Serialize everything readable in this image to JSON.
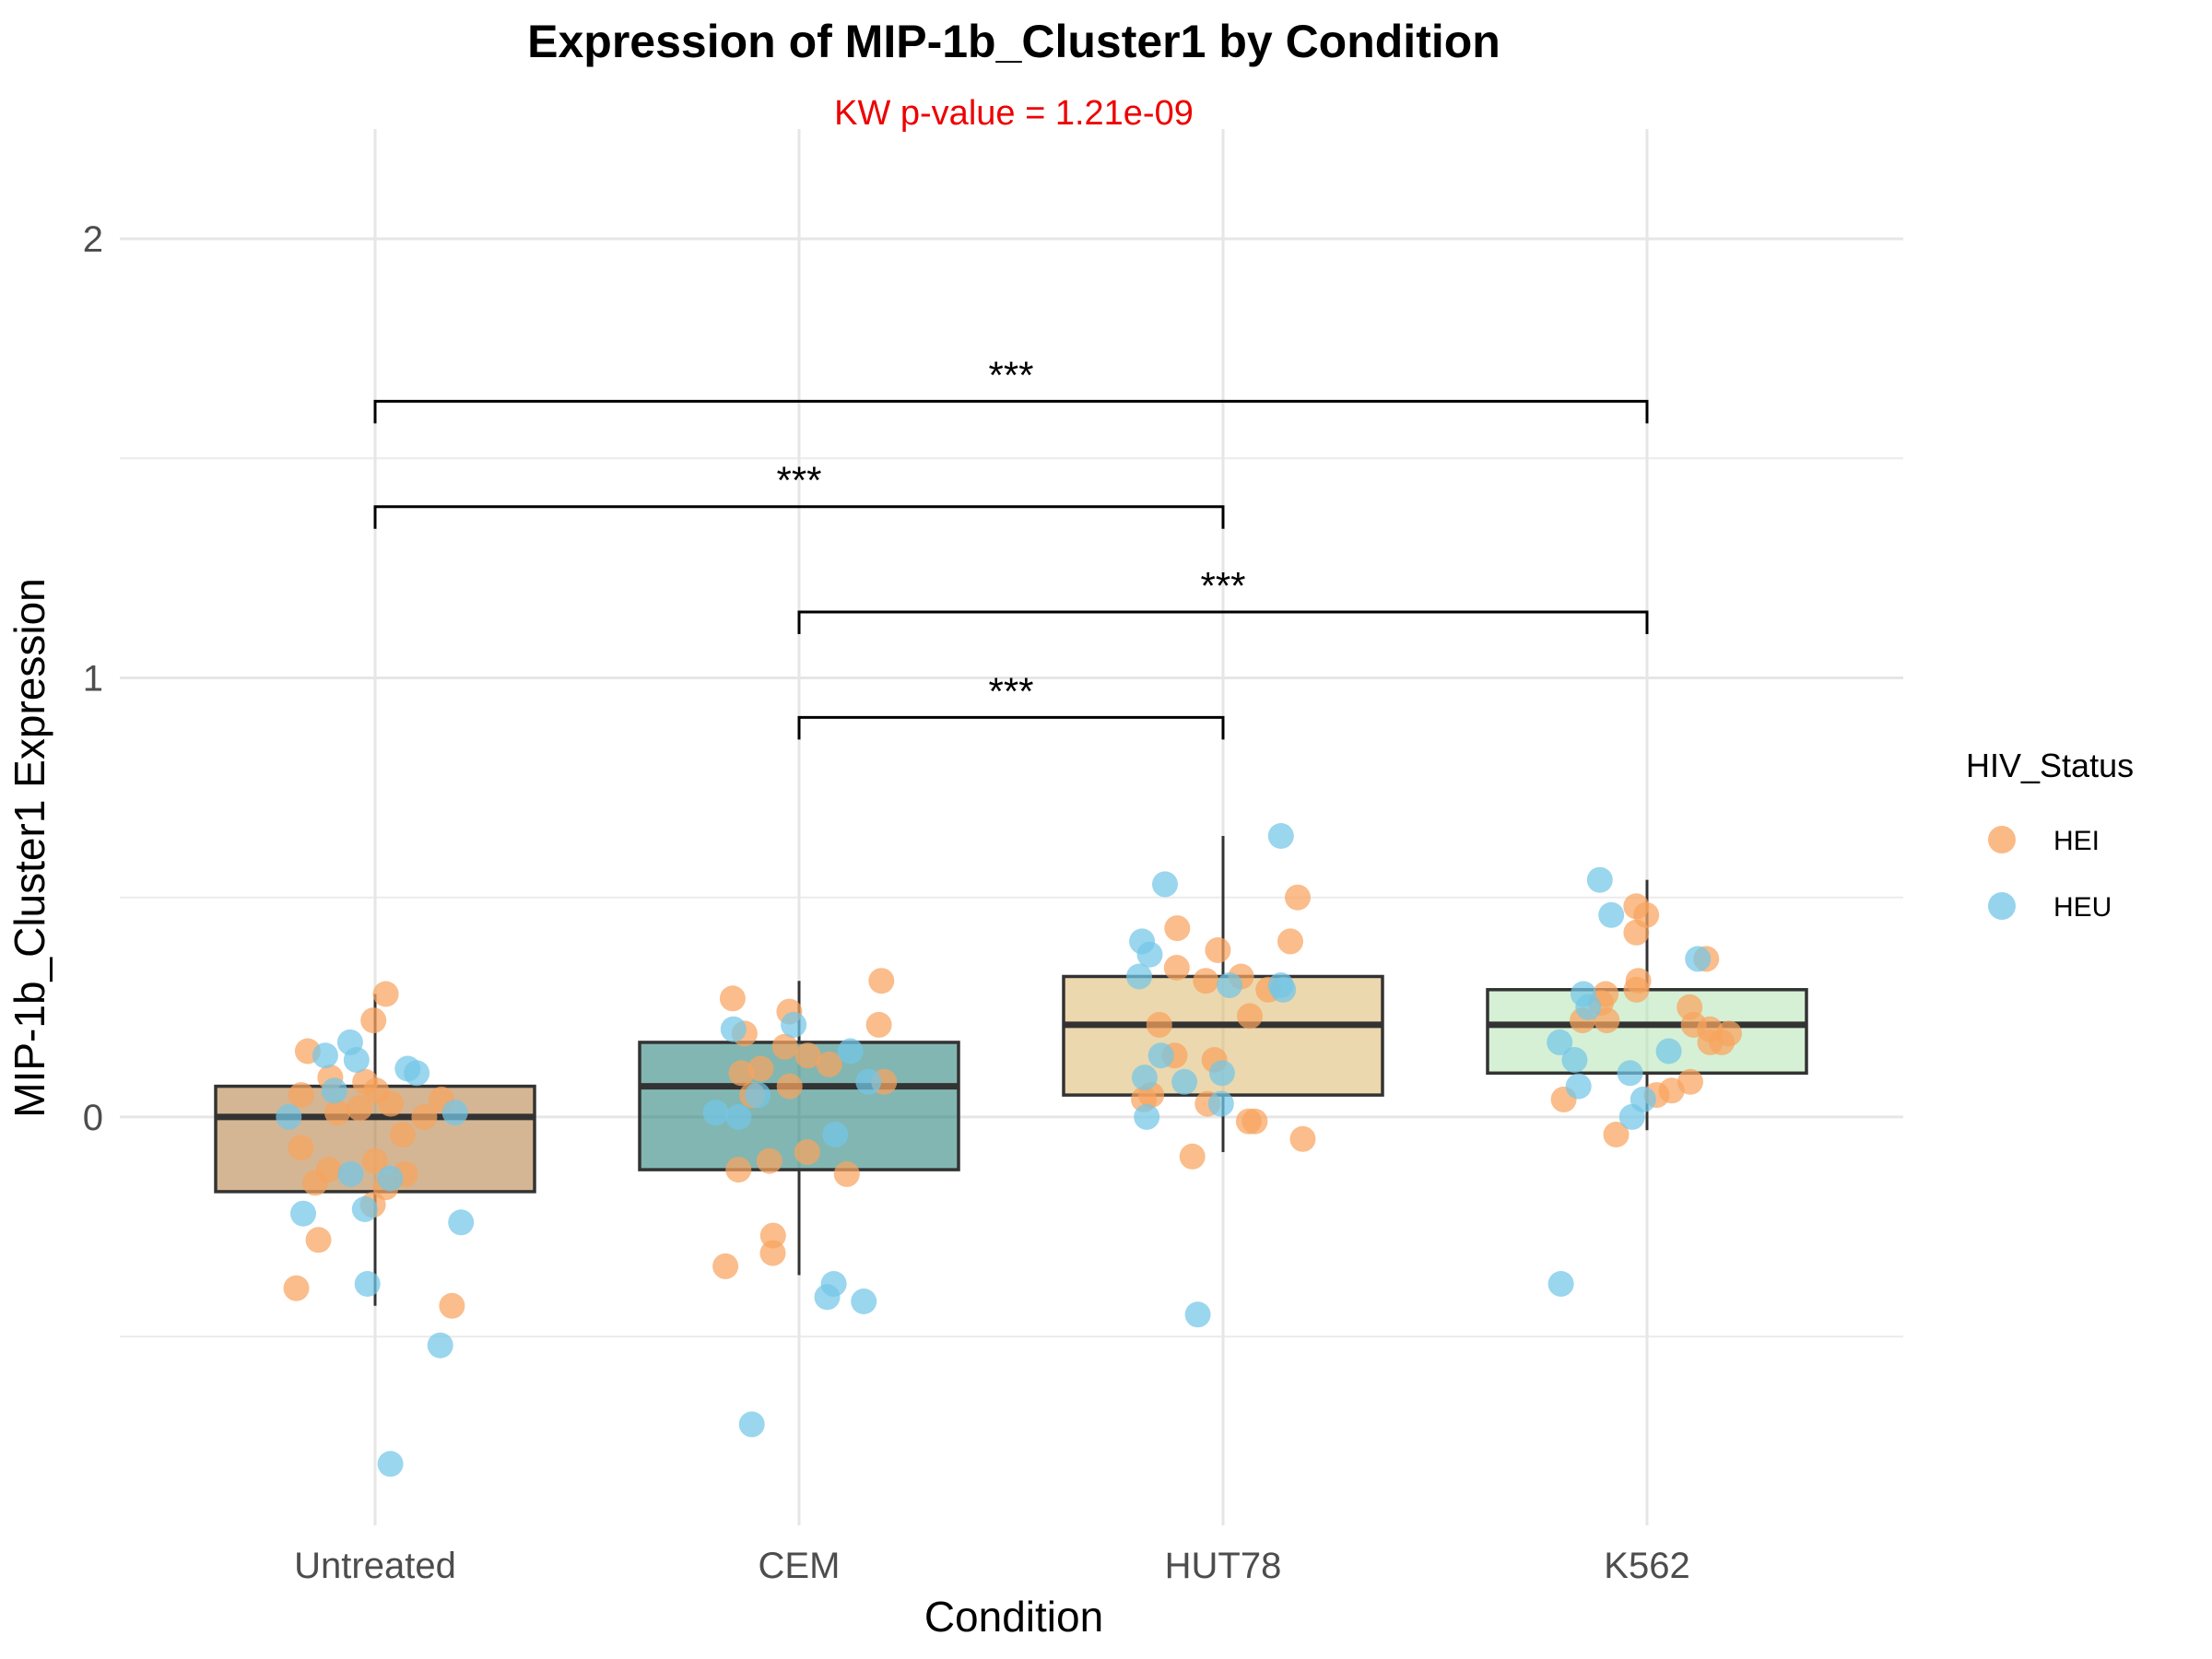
{
  "chart_data": {
    "type": "box",
    "title": "Expression of MIP-1b_Cluster1 by Condition",
    "subtitle": "KW p-value = 1.21e-09",
    "subtitle_color": "#ee0000",
    "xlabel": "Condition",
    "ylabel": "MIP-1b_Cluster1 Expression",
    "ylim": [
      -0.93,
      2.25
    ],
    "yticks": [
      0,
      1,
      2
    ],
    "yticks_minor": [
      -0.5,
      0.5,
      1.5
    ],
    "grid": true,
    "categories": [
      "Untreated",
      "CEM",
      "HUT78",
      "K562"
    ],
    "boxes": [
      {
        "category": "Untreated",
        "q1": -0.17,
        "median": 0.0,
        "q3": 0.07,
        "whisker_low": -0.43,
        "whisker_high": 0.28,
        "fill": "#b07a3c"
      },
      {
        "category": "CEM",
        "q1": -0.12,
        "median": 0.07,
        "q3": 0.17,
        "whisker_low": -0.36,
        "whisker_high": 0.31,
        "fill": "#1b7a72"
      },
      {
        "category": "HUT78",
        "q1": 0.05,
        "median": 0.21,
        "q3": 0.32,
        "whisker_low": -0.08,
        "whisker_high": 0.64,
        "fill": "#dcb86c"
      },
      {
        "category": "K562",
        "q1": 0.1,
        "median": 0.21,
        "q3": 0.29,
        "whisker_low": -0.03,
        "whisker_high": 0.54,
        "fill": "#b4e3b2"
      }
    ],
    "legend": {
      "title": "HIV_Status",
      "position": "right",
      "items": [
        {
          "label": "HEI",
          "color": "#f8a35e"
        },
        {
          "label": "HEU",
          "color": "#73c6e8"
        }
      ]
    },
    "points": {
      "HEI": [
        {
          "category": "Untreated",
          "values": [
            0.22,
            0.28,
            0.15,
            0.09,
            0.08,
            0.06,
            0.05,
            0.04,
            0.03,
            0.02,
            0.01,
            0.0,
            -0.04,
            -0.07,
            -0.1,
            -0.12,
            -0.13,
            -0.15,
            -0.16,
            -0.2,
            -0.28,
            -0.39,
            -0.43
          ]
        },
        {
          "category": "CEM",
          "values": [
            0.31,
            0.27,
            0.24,
            0.21,
            0.19,
            0.16,
            0.14,
            0.12,
            0.11,
            0.1,
            0.08,
            0.07,
            0.05,
            -0.08,
            -0.1,
            -0.12,
            -0.13,
            -0.27,
            -0.31,
            -0.34
          ]
        },
        {
          "category": "HUT78",
          "values": [
            0.5,
            0.43,
            0.4,
            0.38,
            0.34,
            0.32,
            0.31,
            0.29,
            0.23,
            0.21,
            0.14,
            0.13,
            0.05,
            0.04,
            0.03,
            -0.01,
            -0.01,
            -0.05,
            -0.09
          ]
        },
        {
          "category": "K562",
          "values": [
            0.48,
            0.46,
            0.42,
            0.36,
            0.31,
            0.29,
            0.28,
            0.26,
            0.25,
            0.22,
            0.22,
            0.21,
            0.2,
            0.19,
            0.17,
            0.17,
            0.08,
            0.06,
            0.05,
            0.04,
            -0.04
          ]
        }
      ],
      "HEU": [
        {
          "category": "Untreated",
          "values": [
            0.17,
            0.14,
            0.13,
            0.11,
            0.1,
            0.06,
            0.01,
            0.0,
            -0.13,
            -0.14,
            -0.21,
            -0.22,
            -0.24,
            -0.38,
            -0.52,
            -0.79
          ]
        },
        {
          "category": "CEM",
          "values": [
            0.21,
            0.2,
            0.15,
            0.08,
            0.05,
            0.01,
            0.0,
            -0.04,
            -0.38,
            -0.41,
            -0.42,
            -0.7
          ]
        },
        {
          "category": "HUT78",
          "values": [
            0.64,
            0.53,
            0.4,
            0.37,
            0.32,
            0.3,
            0.3,
            0.29,
            0.14,
            0.1,
            0.09,
            0.08,
            0.03,
            0.0,
            -0.45
          ]
        },
        {
          "category": "K562",
          "values": [
            0.54,
            0.46,
            0.36,
            0.28,
            0.25,
            0.17,
            0.15,
            0.13,
            0.1,
            0.07,
            0.04,
            0.0,
            -0.38
          ]
        }
      ]
    },
    "comparisons": [
      {
        "from": "Untreated",
        "to": "K562",
        "y": 1.63,
        "label": "***"
      },
      {
        "from": "Untreated",
        "to": "HUT78",
        "y": 1.39,
        "label": "***"
      },
      {
        "from": "CEM",
        "to": "K562",
        "y": 1.15,
        "label": "***"
      },
      {
        "from": "CEM",
        "to": "HUT78",
        "y": 0.91,
        "label": "***"
      }
    ]
  }
}
